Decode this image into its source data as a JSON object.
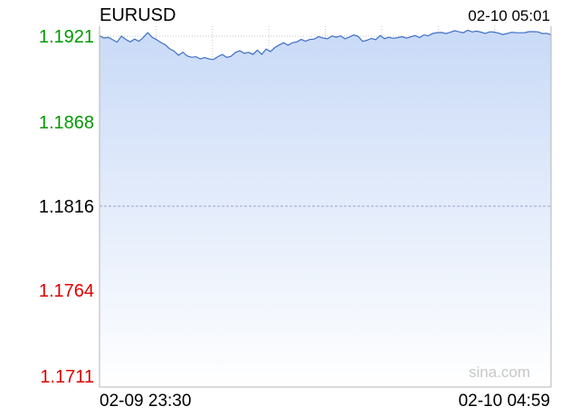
{
  "chart_data": {
    "type": "area",
    "title": "EURUSD",
    "timestamp": "02-10 05:01",
    "watermark": "sina.com",
    "x_tick_labels": [
      "02-09 23:30",
      "02-10 04:59"
    ],
    "y_tick_labels": [
      "1.1921",
      "1.1868",
      "1.1816",
      "1.1764",
      "1.1711"
    ],
    "y_ticks": [
      1.1921,
      1.1868,
      1.1816,
      1.1764,
      1.1711
    ],
    "reference_value": 1.1816,
    "ylim": [
      1.1711,
      1.1921
    ],
    "grid": true,
    "series": [
      {
        "values": [
          1.19213,
          1.19199,
          1.19203,
          1.19188,
          1.19173,
          1.1921,
          1.1919,
          1.19175,
          1.19192,
          1.19178,
          1.19203,
          1.19232,
          1.19204,
          1.19189,
          1.19171,
          1.19157,
          1.19132,
          1.19118,
          1.19092,
          1.19111,
          1.19088,
          1.1908,
          1.19083,
          1.1907,
          1.19078,
          1.19069,
          1.19066,
          1.19084,
          1.19097,
          1.19079,
          1.19086,
          1.1911,
          1.1912,
          1.19104,
          1.1911,
          1.19098,
          1.19124,
          1.19098,
          1.1913,
          1.19115,
          1.1914,
          1.19156,
          1.1917,
          1.19154,
          1.1917,
          1.19174,
          1.1919,
          1.19179,
          1.1919,
          1.19192,
          1.19207,
          1.19198,
          1.19194,
          1.19211,
          1.19204,
          1.19212,
          1.19194,
          1.19205,
          1.19217,
          1.19209,
          1.19178,
          1.19185,
          1.19196,
          1.19189,
          1.19214,
          1.19195,
          1.19203,
          1.19197,
          1.19201,
          1.19207,
          1.19198,
          1.19206,
          1.19214,
          1.19201,
          1.19218,
          1.19212,
          1.19227,
          1.19232,
          1.19233,
          1.19226,
          1.19234,
          1.19244,
          1.19237,
          1.19231,
          1.19247,
          1.19236,
          1.19241,
          1.19235,
          1.19227,
          1.19237,
          1.19235,
          1.19229,
          1.1922,
          1.19227,
          1.19234,
          1.19232,
          1.19231,
          1.19232,
          1.19238,
          1.19238,
          1.19237,
          1.19226,
          1.19228,
          1.19219
        ]
      }
    ],
    "colors": {
      "line": "#3e6fc8",
      "area_top": "#c9daf7",
      "area_bottom": "#ffffff",
      "grid": "#c9c9c9",
      "reference_line": "#9fa3c8",
      "axis": "#b5b5b5",
      "label_up": "#009a00",
      "label_flat": "#000000",
      "label_down": "#dd0000",
      "watermark": "#c7c7c7"
    }
  }
}
